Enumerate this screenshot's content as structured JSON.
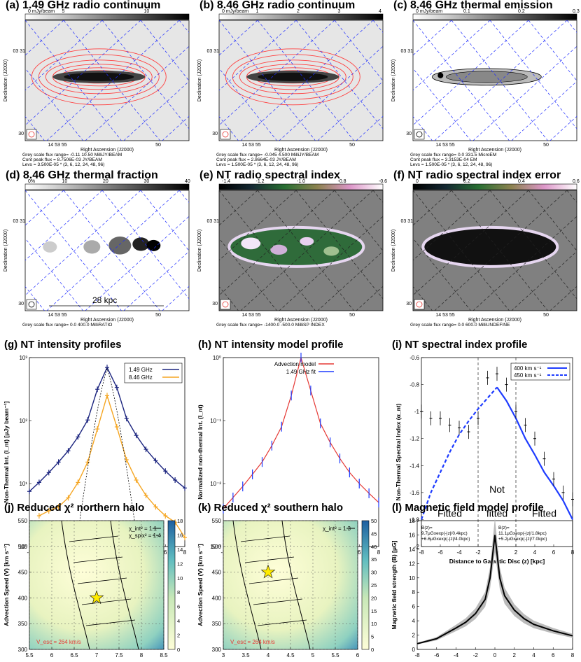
{
  "maps": [
    {
      "id": "a",
      "title": "(a) 1.49 GHz radio continuum",
      "cbar": {
        "unit_label": "0 mJy/beam",
        "ticks": [
          "5",
          "10"
        ],
        "type": "grey"
      },
      "ylabel": "Declination (J2000)",
      "xlabel": "Right Ascension (J2000)",
      "ytick_top": "03 31",
      "ytick_bot": "30",
      "xtick_left": "14 53 55",
      "xtick_right": "50",
      "caption": [
        "Grey scale flux range= -0.11 10.50 MilliJY/BEAM",
        "Cont peak flux = 8.7506E-03 JY/BEAM",
        "Levs = 3.500E-05 * (3, 6, 12, 24, 48, 96)"
      ]
    },
    {
      "id": "b",
      "title": "(b) 8.46 GHz radio continuum",
      "cbar": {
        "unit_label": "0 mJy/beam",
        "ticks": [
          "1",
          "2",
          "3",
          "4"
        ],
        "type": "grey"
      },
      "ylabel": "Declination (J2000)",
      "xlabel": "Right Ascension (J2000)",
      "ytick_top": "03 31",
      "ytick_bot": "30",
      "xtick_left": "14 53 55",
      "xtick_right": "50",
      "caption": [
        "Grey scale flux range= -0.045 4.500 MilliJY/BEAM",
        "Cont peak flux = 2.8664E-03 JY/BEAM",
        "Levs = 1.500E-05 * (3, 6, 12, 24, 48, 96)"
      ]
    },
    {
      "id": "c",
      "title": "(c) 8.46 GHz thermal emission",
      "cbar": {
        "unit_label": "0 mJy/beam",
        "ticks": [
          "0.1",
          "0.2",
          "0.3"
        ],
        "type": "grey"
      },
      "ylabel": "Declination (J2000)",
      "xlabel": "Right Ascension (J2000)",
      "ytick_top": "03 31",
      "ytick_bot": "30",
      "xtick_left": "14 53 55",
      "xtick_right": "50",
      "caption": [
        "Grey scale flux range= 0.0 331.5 MicroEM",
        "Cont peak flux = 3.3153E-04 EM",
        "Levs = 1.500E-05 * (3, 6, 12, 24, 48, 96)"
      ]
    },
    {
      "id": "d",
      "title": "(d) 8.46 GHz thermal fraction",
      "cbar": {
        "unit_label": "0%",
        "ticks": [
          "10",
          "20",
          "30",
          "40"
        ],
        "type": "grey"
      },
      "ylabel": "Declination (J2000)",
      "xlabel": "Right Ascension (J2000)",
      "ytick_top": "03 31",
      "ytick_bot": "30",
      "xtick_left": "14 53 55",
      "xtick_right": "50",
      "scalebar": "28 kpc",
      "caption": [
        "Grey scale flux range= 0.0 400.0 MilliRATIO"
      ]
    },
    {
      "id": "e",
      "title": "(e) NT radio spectral index",
      "cbar": {
        "unit_label": "-1.4",
        "ticks": [
          "-1.2",
          "-1.0",
          "-0.8",
          "-0.6"
        ],
        "type": "cubehelix"
      },
      "ylabel": "Declination (J2000)",
      "xlabel": "Right Ascension (J2000)",
      "ytick_top": "03 31",
      "ytick_bot": "30",
      "xtick_left": "14 53 55",
      "xtick_right": "50",
      "caption": [
        "Grey scale flux range= -1400.0 -500.0 MilliSP INDEX"
      ]
    },
    {
      "id": "f",
      "title": "(f) NT radio spectral index error",
      "cbar": {
        "unit_label": "0",
        "ticks": [
          "0.2",
          "0.4",
          "0.6"
        ],
        "type": "cubehelix"
      },
      "ylabel": "Declination (J2000)",
      "xlabel": "Right Ascension (J2000)",
      "ytick_top": "03 31",
      "ytick_bot": "30",
      "xtick_left": "14 53 55",
      "xtick_right": "50",
      "caption": [
        "Grey scale flux range= 0.0 600.0 MilliUNDEFINE"
      ]
    }
  ],
  "plots": {
    "g": {
      "title": "(g) NT intensity profiles",
      "xlabel": "Distance to Galactic Disc (z) [kpc]",
      "ylabel": "Non-Thermal Int. (I_nt) [μJy beam⁻¹]",
      "legend": [
        "1.49 GHz",
        "8.46 GHz"
      ]
    },
    "h": {
      "title": "(h) NT intensity model profile",
      "xlabel": "Distance to Galactic Disc (z) [kpc]",
      "ylabel": "Normalized non-thermal Int. (I_nt)",
      "legend": [
        "Advection model",
        "1.49 GHz fit"
      ]
    },
    "i": {
      "title": "(i) NT spectral index profile",
      "xlabel": "Distance to Galactic Disc (z) [kpc]",
      "ylabel": "Non-Thermal Spectral Index (α_nt)",
      "legend": [
        "400 km s⁻¹",
        "450 km s⁻¹"
      ],
      "regions": [
        "Fitted",
        "Not fitted",
        "Fitted"
      ]
    },
    "j": {
      "title": "(j) Reduced χ² northern halo",
      "xlabel": "Magnetic Field Scale Height (h_B2) [kpc]",
      "ylabel": "Advection Speed (V) [km s⁻¹]",
      "legend": [
        "χ_int² = 1.1",
        "χ_spix² = 1.4"
      ],
      "note": "V_esc = 264 km/s"
    },
    "k": {
      "title": "(k) Reduced χ² southern halo",
      "xlabel": "Magnetic Field Scale Height (h_B2) [kpc]",
      "ylabel": "Advection Speed (V) [km s⁻¹]",
      "legend": [
        "χ_int² = 1.3"
      ],
      "note": "V_esc = 264 km/s"
    },
    "l": {
      "title": "(l) Magnetic field model profile",
      "xlabel": "Distance to Galactic Disc (z) [kpc]",
      "ylabel": "Magnetic field strength (B) [μG]",
      "note_left": [
        "B(z)=",
        "9.7μGxexp(-|z|/0.4kpc)",
        "+6.6μGxexp(-|z|/4.0kpc)"
      ],
      "note_right": [
        "B(z)=",
        "11.1μGxexp(-|z|/1.8kpc)",
        "+5.2μGxexp(-|z|/7.0kpc)"
      ]
    }
  },
  "chart_data": [
    {
      "type": "line",
      "id": "g",
      "xlim": [
        -8,
        8
      ],
      "ylim": [
        1,
        5000
      ],
      "yscale": "log",
      "x": [
        -8,
        -7,
        -6,
        -5,
        -4,
        -3,
        -2,
        -1,
        0,
        1,
        2,
        3,
        4,
        5,
        6,
        7,
        8
      ],
      "series": [
        {
          "name": "1.49 GHz",
          "color": "#1a237e",
          "values": [
            12,
            18,
            28,
            45,
            75,
            140,
            300,
            1200,
            3200,
            1300,
            320,
            150,
            80,
            48,
            30,
            20,
            14
          ]
        },
        {
          "name": "8.46 GHz",
          "color": "#f5a623",
          "values": [
            null,
            4,
            5,
            6,
            9,
            18,
            45,
            200,
            900,
            220,
            50,
            20,
            10,
            6,
            4,
            3,
            1.5
          ]
        }
      ],
      "xticks": [
        -8,
        -6,
        -4,
        -2,
        0,
        2,
        4,
        6,
        8
      ],
      "yticks": [
        "10⁰",
        "10¹",
        "10²",
        "10³"
      ]
    },
    {
      "type": "line",
      "id": "h",
      "xlim": [
        -8,
        8
      ],
      "ylim": [
        0.001,
        1
      ],
      "yscale": "log",
      "x": [
        -8,
        -7,
        -6,
        -5,
        -4,
        -3,
        -2,
        -1,
        0,
        1,
        2,
        3,
        4,
        5,
        6,
        7,
        8
      ],
      "series": [
        {
          "name": "Advection model",
          "color": "#e53935",
          "values": [
            0.004,
            0.006,
            0.009,
            0.014,
            0.022,
            0.04,
            0.08,
            0.25,
            1,
            0.3,
            0.09,
            0.045,
            0.025,
            0.015,
            0.01,
            0.007,
            0.005
          ]
        },
        {
          "name": "1.49 GHz fit",
          "color": "#1e3cff",
          "values": [
            0.004,
            0.006,
            0.009,
            0.014,
            0.022,
            0.04,
            0.08,
            0.25,
            1,
            0.3,
            0.09,
            0.045,
            0.025,
            0.015,
            0.01,
            0.007,
            0.005
          ]
        }
      ],
      "xticks": [
        -8,
        -6,
        -4,
        -2,
        0,
        2,
        4,
        6,
        8
      ],
      "yticks": [
        "10⁻³",
        "10⁻²",
        "10⁻¹",
        "10⁰"
      ]
    },
    {
      "type": "line",
      "id": "i",
      "xlim": [
        -8,
        8
      ],
      "ylim": [
        -2,
        -0.6
      ],
      "x": [
        -8,
        -7,
        -6,
        -5,
        -4,
        -3,
        -2,
        -1,
        0,
        1,
        2,
        3,
        4,
        5,
        6,
        7,
        8
      ],
      "series": [
        {
          "name": "400 km s⁻¹",
          "color": "#1e3cff",
          "values": [
            null,
            null,
            null,
            null,
            null,
            null,
            null,
            null,
            -0.82,
            -0.92,
            -1.05,
            -1.2,
            -1.32,
            -1.45,
            -1.55,
            -1.66,
            -1.8
          ]
        },
        {
          "name": "450 km s⁻¹",
          "color": "#1e3cff",
          "values": [
            -1.8,
            -1.6,
            -1.45,
            -1.3,
            -1.17,
            -1.07,
            -0.98,
            -0.9,
            -0.82,
            -0.9,
            -1.0,
            -1.12,
            -1.22,
            -1.33,
            -1.42,
            -1.5,
            -1.58
          ]
        },
        {
          "name": "data",
          "color": "#000",
          "values": [
            -1.0,
            -1.05,
            -1.05,
            -1.1,
            -1.12,
            -1.15,
            -1.05,
            -0.75,
            -0.72,
            -0.8,
            -1.0,
            -1.1,
            -1.2,
            -1.35,
            -1.5,
            -1.6,
            -1.65
          ]
        }
      ],
      "xticks": [
        -8,
        -6,
        -4,
        -2,
        0,
        2,
        4,
        6,
        8
      ],
      "yticks": [
        -2,
        -1.8,
        -1.6,
        -1.4,
        -1.2,
        -1,
        -0.8,
        -0.6
      ]
    },
    {
      "type": "heatmap",
      "id": "j",
      "xlim": [
        5.5,
        8.5
      ],
      "ylim": [
        300,
        550
      ],
      "colorbar": [
        0,
        18
      ],
      "xticks": [
        5.5,
        6,
        6.5,
        7,
        7.5,
        8,
        8.5
      ],
      "yticks": [
        300,
        350,
        400,
        450,
        500,
        550
      ],
      "cbticks": [
        0,
        2,
        4,
        6,
        8,
        10,
        12,
        14,
        16,
        18
      ],
      "best_fit": {
        "x": 7.0,
        "y": 400
      }
    },
    {
      "type": "heatmap",
      "id": "k",
      "xlim": [
        3,
        6
      ],
      "ylim": [
        300,
        550
      ],
      "colorbar": [
        0,
        50
      ],
      "xticks": [
        3,
        3.5,
        4,
        4.5,
        5,
        5.5,
        6
      ],
      "yticks": [
        300,
        350,
        400,
        450,
        500,
        550
      ],
      "cbticks": [
        0,
        5,
        10,
        15,
        20,
        25,
        30,
        35,
        40,
        45,
        50
      ],
      "best_fit": {
        "x": 4.0,
        "y": 450
      }
    },
    {
      "type": "line",
      "id": "l",
      "xlim": [
        -8,
        8
      ],
      "ylim": [
        0,
        18
      ],
      "x": [
        -8,
        -6,
        -4,
        -3,
        -2,
        -1,
        -0.5,
        0,
        0.5,
        1,
        2,
        3,
        4,
        6,
        8
      ],
      "series": [
        {
          "name": "B(z)",
          "color": "#000",
          "values": [
            0.8,
            1.5,
            3,
            3.8,
            5,
            7,
            10,
            16,
            10,
            7.5,
            5.5,
            4.3,
            3.5,
            2.6,
            1.9
          ]
        }
      ],
      "xticks": [
        -8,
        -6,
        -4,
        -2,
        0,
        2,
        4,
        6,
        8
      ],
      "yticks": [
        0,
        2,
        4,
        6,
        8,
        10,
        12,
        14,
        16,
        18
      ]
    }
  ]
}
